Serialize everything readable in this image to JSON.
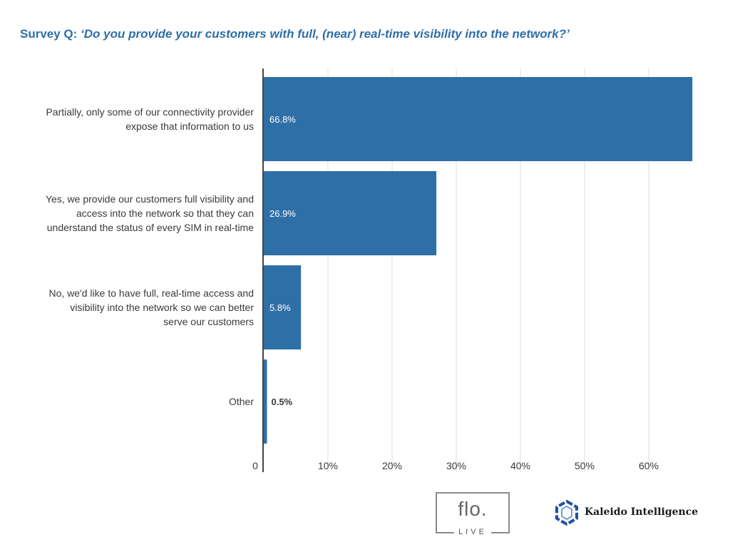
{
  "title": {
    "lead": "Survey Q: ",
    "question": "‘Do you provide your customers with full, (near) real-time visibility into the network?’"
  },
  "colors": {
    "bar": "#2f6fa8",
    "title": "#2e6ea8",
    "label": "#3a3a3a",
    "grid": "#dddddd",
    "axis": "#444444"
  },
  "chart_data": {
    "type": "bar",
    "orientation": "horizontal",
    "categories": [
      [
        "Partially, only some of our connectivity provider",
        "expose that information to us"
      ],
      [
        "Yes, we provide our customers full visibility and",
        "access into the network so that they can",
        "understand the status of every SIM in real-time"
      ],
      [
        "No, we'd like to have full, real-time access and",
        "visibility into the network so we can better",
        "serve our customers"
      ],
      [
        "Other"
      ]
    ],
    "values": [
      66.8,
      26.9,
      5.8,
      0.5
    ],
    "data_labels": [
      "66.8%",
      "26.9%",
      "5.8%",
      "0.5%"
    ],
    "xlim": [
      0,
      70
    ],
    "xticks": [
      0,
      10,
      20,
      30,
      40,
      50,
      60
    ],
    "xtick_labels": [
      "0",
      "10%",
      "20%",
      "30%",
      "40%",
      "50%",
      "60%"
    ],
    "grid": "vertical",
    "legend": "none"
  },
  "logos": {
    "flo_main": "flo.",
    "flo_sub": "LIVE",
    "kaleido_name": "Kaleido Intelligence"
  }
}
